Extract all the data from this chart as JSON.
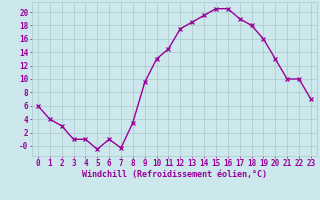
{
  "x": [
    0,
    1,
    2,
    3,
    4,
    5,
    6,
    7,
    8,
    9,
    10,
    11,
    12,
    13,
    14,
    15,
    16,
    17,
    18,
    19,
    20,
    21,
    22,
    23
  ],
  "y": [
    6,
    4,
    3,
    1,
    1,
    -0.5,
    1,
    -0.3,
    3.5,
    9.5,
    13,
    14.5,
    17.5,
    18.5,
    19.5,
    20.5,
    20.5,
    19,
    18,
    16,
    13,
    10,
    10,
    7
  ],
  "line_color": "#990099",
  "marker": "x",
  "marker_size": 3,
  "line_width": 1.0,
  "bg_color": "#cce8ec",
  "grid_color": "#aac8cc",
  "xlabel": "Windchill (Refroidissement éolien,°C)",
  "xlabel_color": "#990099",
  "xlabel_fontsize": 6.0,
  "tick_fontsize": 5.5,
  "tick_color": "#990099",
  "ylim": [
    -1.5,
    21.5
  ],
  "yticks": [
    0,
    2,
    4,
    6,
    8,
    10,
    12,
    14,
    16,
    18,
    20
  ],
  "ytick_labels": [
    "-0",
    "2",
    "4",
    "6",
    "8",
    "10",
    "12",
    "14",
    "16",
    "18",
    "20"
  ]
}
